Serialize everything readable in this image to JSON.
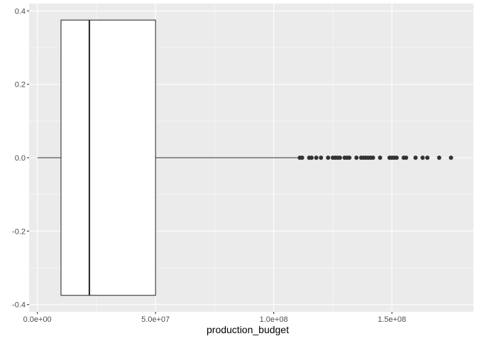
{
  "chart_data": {
    "type": "boxplot",
    "orientation": "horizontal",
    "xlabel": "production_budget",
    "ylabel": "",
    "xlim": [
      -3500000,
      184500000
    ],
    "ylim": [
      -0.42,
      0.42
    ],
    "x_ticks": [
      {
        "value": 0,
        "label": "0.0e+00"
      },
      {
        "value": 50000000,
        "label": "5.0e+07"
      },
      {
        "value": 100000000,
        "label": "1.0e+08"
      },
      {
        "value": 150000000,
        "label": "1.5e+08"
      }
    ],
    "y_ticks": [
      {
        "value": 0.4,
        "label": "0.4"
      },
      {
        "value": 0.2,
        "label": "0.2"
      },
      {
        "value": 0.0,
        "label": "0.0"
      },
      {
        "value": -0.2,
        "label": "-0.2"
      },
      {
        "value": -0.4,
        "label": "-0.4"
      }
    ],
    "box": {
      "whisker_low": 0,
      "q1": 10000000,
      "median": 22000000,
      "q3": 50000000,
      "whisker_high": 110000000,
      "y_center": 0,
      "half_width": 0.375
    },
    "outliers": [
      111000000,
      112000000,
      115000000,
      116000000,
      118000000,
      120000000,
      123000000,
      125000000,
      126000000,
      127000000,
      128000000,
      130000000,
      131000000,
      132000000,
      135000000,
      137000000,
      138000000,
      139000000,
      140000000,
      141000000,
      142000000,
      145000000,
      149000000,
      150000000,
      151000000,
      152000000,
      155000000,
      156000000,
      160000000,
      163000000,
      165000000,
      170000000,
      175000000
    ],
    "grid": true,
    "colors": {
      "panel_background": "#ebebeb",
      "major_grid": "#ffffff",
      "box_fill": "#ffffff",
      "box_stroke": "#333333",
      "outlier": "#333333",
      "tick_label": "#4d4d4d",
      "axis_title": "#000000"
    }
  }
}
